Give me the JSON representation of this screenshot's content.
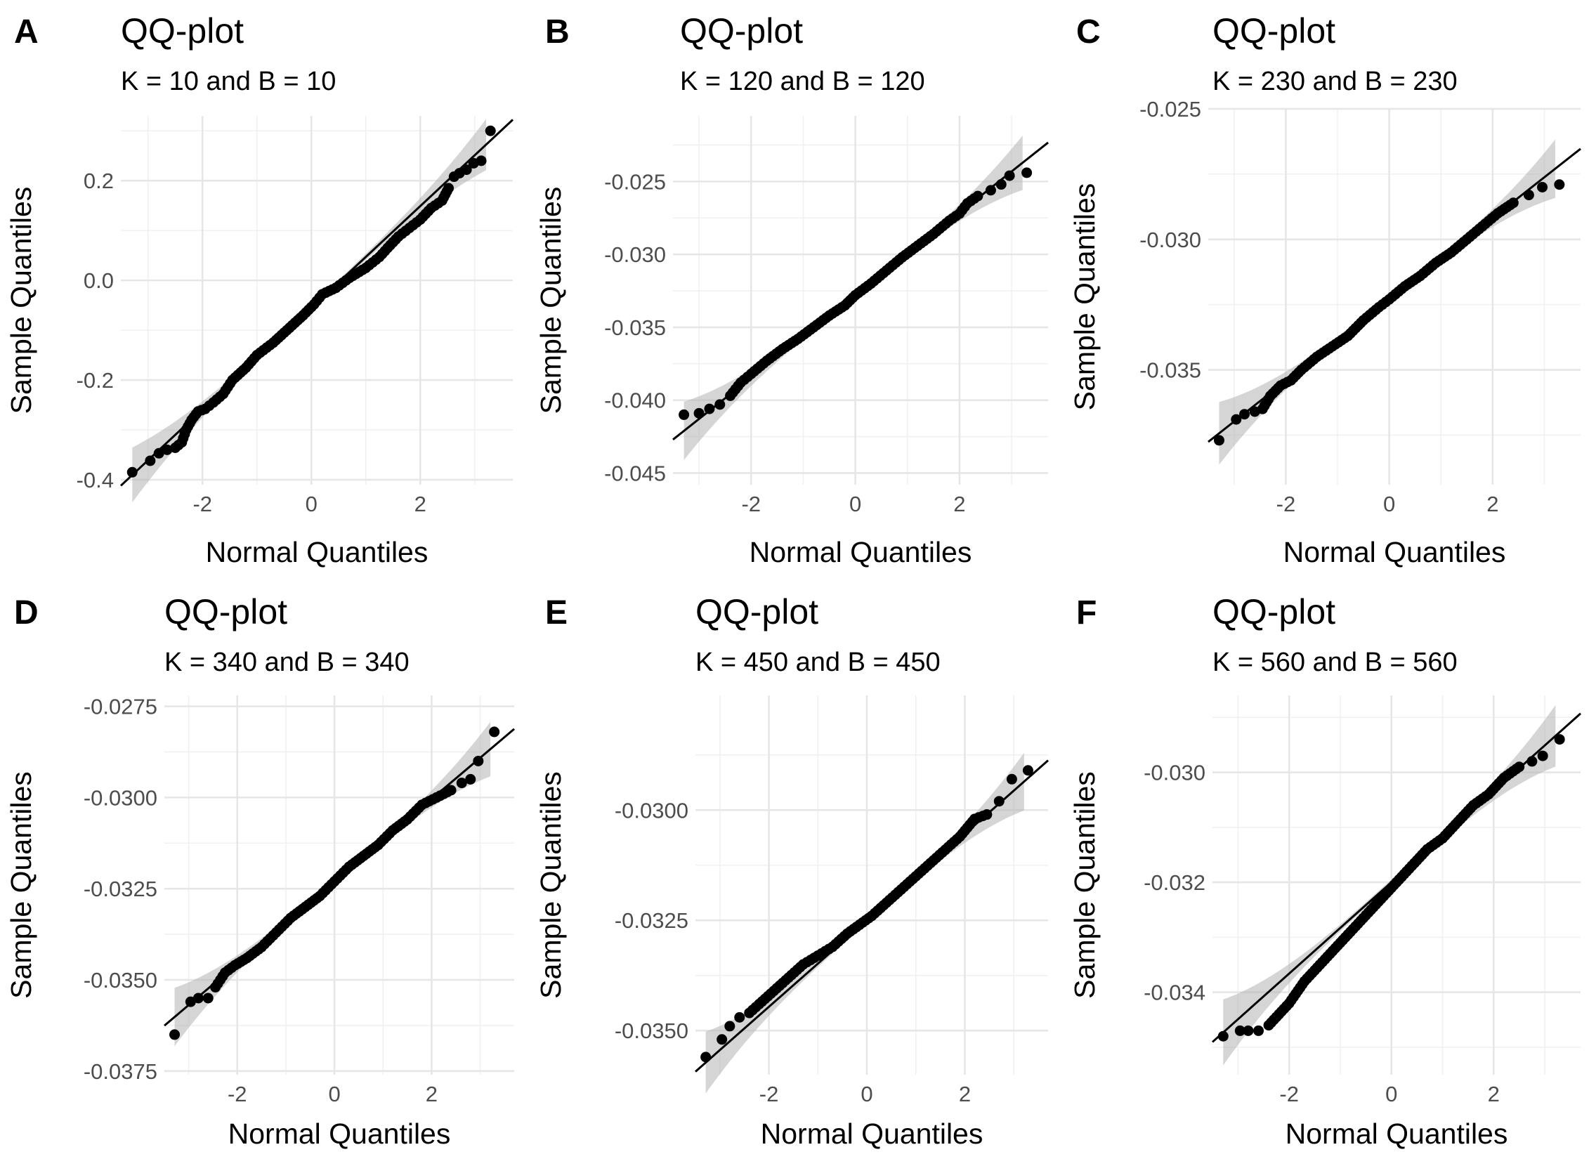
{
  "chart_data": [
    {
      "type": "scatter",
      "panel_label": "A",
      "title": "QQ-plot",
      "subtitle": "K = 10 and B = 10",
      "xlabel": "Normal Quantiles",
      "ylabel": "Sample Quantiles",
      "xlim": [
        -3.5,
        3.7
      ],
      "ylim": [
        -0.41,
        0.33
      ],
      "x_ticks": [
        -2,
        0,
        2
      ],
      "x_tick_labels": [
        "-2",
        "0",
        "2"
      ],
      "y_ticks": [
        -0.4,
        -0.2,
        0.0,
        0.2
      ],
      "y_tick_labels": [
        "-0.4",
        "-0.2",
        "0.0",
        "0.2"
      ],
      "reference_line": {
        "intercept": -0.055,
        "slope": 0.102
      },
      "band_halfwidth": {
        "center": 0.005,
        "tail": 0.055
      },
      "points": [
        [
          -3.29,
          -0.385
        ],
        [
          -2.96,
          -0.362
        ],
        [
          -2.8,
          -0.347
        ],
        [
          -2.65,
          -0.34
        ],
        [
          -2.5,
          -0.336
        ],
        [
          -2.38,
          -0.325
        ],
        [
          -2.3,
          -0.3
        ],
        [
          -2.2,
          -0.28
        ],
        [
          -2.08,
          -0.263
        ],
        [
          -1.95,
          -0.258
        ],
        [
          -1.8,
          -0.245
        ],
        [
          -1.62,
          -0.228
        ],
        [
          -1.45,
          -0.2
        ],
        [
          -1.2,
          -0.175
        ],
        [
          -1.0,
          -0.15
        ],
        [
          -0.7,
          -0.125
        ],
        [
          -0.4,
          -0.095
        ],
        [
          -0.15,
          -0.07
        ],
        [
          0.05,
          -0.048
        ],
        [
          0.2,
          -0.028
        ],
        [
          0.45,
          -0.015
        ],
        [
          0.7,
          0.005
        ],
        [
          1.0,
          0.025
        ],
        [
          1.25,
          0.047
        ],
        [
          1.4,
          0.065
        ],
        [
          1.6,
          0.088
        ],
        [
          1.8,
          0.105
        ],
        [
          2.0,
          0.122
        ],
        [
          2.2,
          0.145
        ],
        [
          2.4,
          0.16
        ],
        [
          2.52,
          0.185
        ],
        [
          2.62,
          0.208
        ],
        [
          2.72,
          0.215
        ],
        [
          2.85,
          0.222
        ],
        [
          2.98,
          0.235
        ],
        [
          3.12,
          0.24
        ],
        [
          3.29,
          0.3
        ]
      ]
    },
    {
      "type": "scatter",
      "panel_label": "B",
      "title": "QQ-plot",
      "subtitle": "K = 120 and B = 120",
      "xlabel": "Normal Quantiles",
      "ylabel": "Sample Quantiles",
      "xlim": [
        -3.5,
        3.7
      ],
      "ylim": [
        -0.0458,
        -0.0205
      ],
      "x_ticks": [
        -2,
        0,
        2
      ],
      "x_tick_labels": [
        "-2",
        "0",
        "2"
      ],
      "y_ticks": [
        -0.045,
        -0.04,
        -0.035,
        -0.03,
        -0.025
      ],
      "y_tick_labels": [
        "-0.045",
        "-0.040",
        "-0.035",
        "-0.030",
        "-0.025"
      ],
      "reference_line": {
        "intercept": -0.0328,
        "slope": 0.00283
      },
      "band_halfwidth": {
        "center": 0.00015,
        "tail": 0.002
      },
      "points": [
        [
          -3.29,
          -0.041
        ],
        [
          -3.0,
          -0.0409
        ],
        [
          -2.8,
          -0.0406
        ],
        [
          -2.6,
          -0.0403
        ],
        [
          -2.4,
          -0.0397
        ],
        [
          -2.2,
          -0.0388
        ],
        [
          -2.0,
          -0.0382
        ],
        [
          -1.7,
          -0.0373
        ],
        [
          -1.4,
          -0.0365
        ],
        [
          -1.1,
          -0.0358
        ],
        [
          -0.8,
          -0.035
        ],
        [
          -0.5,
          -0.0342
        ],
        [
          -0.2,
          -0.0335
        ],
        [
          0.0,
          -0.0328
        ],
        [
          0.3,
          -0.032
        ],
        [
          0.6,
          -0.0311
        ],
        [
          0.9,
          -0.0302
        ],
        [
          1.2,
          -0.0294
        ],
        [
          1.5,
          -0.0286
        ],
        [
          1.8,
          -0.0277
        ],
        [
          2.0,
          -0.0272
        ],
        [
          2.15,
          -0.0265
        ],
        [
          2.35,
          -0.026
        ],
        [
          2.6,
          -0.0256
        ],
        [
          2.8,
          -0.0252
        ],
        [
          2.96,
          -0.0246
        ],
        [
          3.29,
          -0.0244
        ]
      ]
    },
    {
      "type": "scatter",
      "panel_label": "C",
      "title": "QQ-plot",
      "subtitle": "K = 230 and B = 230",
      "xlabel": "Normal Quantiles",
      "ylabel": "Sample Quantiles",
      "xlim": [
        -3.5,
        3.7
      ],
      "ylim": [
        -0.0394,
        -0.025
      ],
      "x_ticks": [
        -2,
        0,
        2
      ],
      "x_tick_labels": [
        "-2",
        "0",
        "2"
      ],
      "y_ticks": [
        -0.035,
        -0.03,
        -0.025
      ],
      "y_tick_labels": [
        "-0.035",
        "-0.030",
        "-0.025"
      ],
      "reference_line": {
        "intercept": -0.0323,
        "slope": 0.00156
      },
      "band_halfwidth": {
        "center": 0.0001,
        "tail": 0.0012
      },
      "points": [
        [
          -3.29,
          -0.0377
        ],
        [
          -2.96,
          -0.0369
        ],
        [
          -2.8,
          -0.0367
        ],
        [
          -2.6,
          -0.0366
        ],
        [
          -2.45,
          -0.0365
        ],
        [
          -2.3,
          -0.036
        ],
        [
          -2.1,
          -0.0356
        ],
        [
          -1.9,
          -0.0354
        ],
        [
          -1.7,
          -0.035
        ],
        [
          -1.4,
          -0.0345
        ],
        [
          -1.1,
          -0.0341
        ],
        [
          -0.8,
          -0.0337
        ],
        [
          -0.5,
          -0.0331
        ],
        [
          -0.2,
          -0.0326
        ],
        [
          0.0,
          -0.0323
        ],
        [
          0.3,
          -0.0318
        ],
        [
          0.6,
          -0.0314
        ],
        [
          0.9,
          -0.0309
        ],
        [
          1.2,
          -0.0305
        ],
        [
          1.5,
          -0.03
        ],
        [
          1.8,
          -0.0295
        ],
        [
          2.1,
          -0.029
        ],
        [
          2.4,
          -0.0286
        ],
        [
          2.7,
          -0.0283
        ],
        [
          2.96,
          -0.028
        ],
        [
          3.29,
          -0.0279
        ]
      ]
    },
    {
      "type": "scatter",
      "panel_label": "D",
      "title": "QQ-plot",
      "subtitle": "K = 340 and B = 340",
      "xlabel": "Normal Quantiles",
      "ylabel": "Sample Quantiles",
      "xlim": [
        -3.5,
        3.7
      ],
      "ylim": [
        -0.0376,
        -0.0272
      ],
      "x_ticks": [
        -2,
        0,
        2
      ],
      "x_tick_labels": [
        "-2",
        "0",
        "2"
      ],
      "y_ticks": [
        -0.0375,
        -0.035,
        -0.0325,
        -0.03,
        -0.0275
      ],
      "y_tick_labels": [
        "-0.0375",
        "-0.0350",
        "-0.0325",
        "-0.0300",
        "-0.0275"
      ],
      "reference_line": {
        "intercept": -0.0323,
        "slope": 0.00113
      },
      "band_halfwidth": {
        "center": 7e-05,
        "tail": 0.0008
      },
      "points": [
        [
          -3.29,
          -0.0365
        ],
        [
          -2.96,
          -0.0356
        ],
        [
          -2.8,
          -0.0355
        ],
        [
          -2.6,
          -0.0355
        ],
        [
          -2.45,
          -0.0352
        ],
        [
          -2.25,
          -0.0348
        ],
        [
          -2.05,
          -0.0346
        ],
        [
          -1.8,
          -0.0344
        ],
        [
          -1.5,
          -0.0341
        ],
        [
          -1.2,
          -0.0337
        ],
        [
          -0.9,
          -0.0333
        ],
        [
          -0.6,
          -0.033
        ],
        [
          -0.3,
          -0.0327
        ],
        [
          0.0,
          -0.0323
        ],
        [
          0.3,
          -0.0319
        ],
        [
          0.6,
          -0.0316
        ],
        [
          0.9,
          -0.0313
        ],
        [
          1.2,
          -0.0309
        ],
        [
          1.5,
          -0.0306
        ],
        [
          1.8,
          -0.0302
        ],
        [
          2.1,
          -0.03
        ],
        [
          2.4,
          -0.0298
        ],
        [
          2.62,
          -0.0296
        ],
        [
          2.8,
          -0.0295
        ],
        [
          2.96,
          -0.029
        ],
        [
          3.29,
          -0.0282
        ]
      ]
    },
    {
      "type": "scatter",
      "panel_label": "E",
      "title": "QQ-plot",
      "subtitle": "K = 450 and B = 450",
      "xlabel": "Normal Quantiles",
      "ylabel": "Sample Quantiles",
      "xlim": [
        -3.5,
        3.7
      ],
      "ylim": [
        -0.036,
        -0.0274
      ],
      "x_ticks": [
        -2,
        0,
        2
      ],
      "x_tick_labels": [
        "-2",
        "0",
        "2"
      ],
      "y_ticks": [
        -0.035,
        -0.0325,
        -0.03
      ],
      "y_tick_labels": [
        "-0.0350",
        "-0.0325",
        "-0.0300"
      ],
      "reference_line": {
        "intercept": -0.0325,
        "slope": 0.00098
      },
      "band_halfwidth": {
        "center": 6e-05,
        "tail": 0.0007
      },
      "points": [
        [
          -3.29,
          -0.0356
        ],
        [
          -2.96,
          -0.0352
        ],
        [
          -2.8,
          -0.0349
        ],
        [
          -2.6,
          -0.0347
        ],
        [
          -2.4,
          -0.0346
        ],
        [
          -2.2,
          -0.0344
        ],
        [
          -1.9,
          -0.0341
        ],
        [
          -1.6,
          -0.0338
        ],
        [
          -1.3,
          -0.0335
        ],
        [
          -1.0,
          -0.0333
        ],
        [
          -0.7,
          -0.0331
        ],
        [
          -0.4,
          -0.0328
        ],
        [
          -0.15,
          -0.0326
        ],
        [
          0.1,
          -0.0324
        ],
        [
          0.4,
          -0.0321
        ],
        [
          0.7,
          -0.0318
        ],
        [
          1.0,
          -0.0315
        ],
        [
          1.3,
          -0.0312
        ],
        [
          1.6,
          -0.0309
        ],
        [
          1.9,
          -0.0306
        ],
        [
          2.2,
          -0.0302
        ],
        [
          2.45,
          -0.0301
        ],
        [
          2.7,
          -0.0298
        ],
        [
          2.96,
          -0.0293
        ],
        [
          3.29,
          -0.0291
        ]
      ]
    },
    {
      "type": "scatter",
      "panel_label": "F",
      "title": "QQ-plot",
      "subtitle": "K = 560 and B = 560",
      "xlabel": "Normal Quantiles",
      "ylabel": "Sample Quantiles",
      "xlim": [
        -3.5,
        3.7
      ],
      "ylim": [
        -0.0355,
        -0.0286
      ],
      "x_ticks": [
        -2,
        0,
        2
      ],
      "x_tick_labels": [
        "-2",
        "0",
        "2"
      ],
      "y_ticks": [
        -0.034,
        -0.032,
        -0.03
      ],
      "y_tick_labels": [
        "-0.034",
        "-0.032",
        "-0.030"
      ],
      "reference_line": {
        "intercept": -0.032,
        "slope": 0.00083
      },
      "band_halfwidth": {
        "center": 5e-05,
        "tail": 0.0006
      },
      "points": [
        [
          -3.29,
          -0.0348
        ],
        [
          -2.96,
          -0.0347
        ],
        [
          -2.8,
          -0.0347
        ],
        [
          -2.6,
          -0.0347
        ],
        [
          -2.4,
          -0.0346
        ],
        [
          -2.2,
          -0.0344
        ],
        [
          -2.0,
          -0.0342
        ],
        [
          -1.7,
          -0.0338
        ],
        [
          -1.4,
          -0.0335
        ],
        [
          -1.1,
          -0.0332
        ],
        [
          -0.8,
          -0.0329
        ],
        [
          -0.5,
          -0.0326
        ],
        [
          -0.2,
          -0.0323
        ],
        [
          0.1,
          -0.032
        ],
        [
          0.4,
          -0.0317
        ],
        [
          0.7,
          -0.0314
        ],
        [
          1.0,
          -0.0312
        ],
        [
          1.3,
          -0.0309
        ],
        [
          1.6,
          -0.0306
        ],
        [
          1.9,
          -0.0304
        ],
        [
          2.2,
          -0.0301
        ],
        [
          2.5,
          -0.0299
        ],
        [
          2.75,
          -0.0298
        ],
        [
          2.96,
          -0.0297
        ],
        [
          3.29,
          -0.0294
        ]
      ]
    }
  ]
}
